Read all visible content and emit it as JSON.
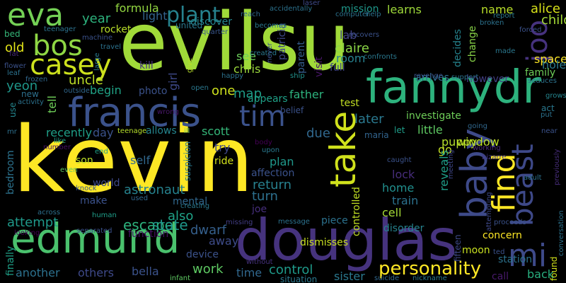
{
  "background": "#000000",
  "words": [
    {
      "text": "kevin",
      "color": "#fde725"
    },
    {
      "text": "evilsu",
      "color": "#a0da39"
    },
    {
      "text": "douglas",
      "color": "#46337e"
    },
    {
      "text": "fannydr",
      "color": "#2db27d"
    },
    {
      "text": "edmund",
      "color": "#4ac16d"
    },
    {
      "text": "francis",
      "color": "#3b528b"
    },
    {
      "text": "take",
      "color": "#d0e11c"
    },
    {
      "text": "beast",
      "color": "#3e4989"
    },
    {
      "text": "baby",
      "color": "#3e4a89"
    },
    {
      "text": "find",
      "color": "#fde725"
    },
    {
      "text": "mi",
      "color": "#3e4a89"
    },
    {
      "text": "eva",
      "color": "#74d055"
    },
    {
      "text": "bos",
      "color": "#8fd744"
    },
    {
      "text": "joo",
      "color": "#46327e"
    },
    {
      "text": "tim",
      "color": "#3b528b"
    },
    {
      "text": "casey",
      "color": "#cde11d"
    },
    {
      "text": "plant",
      "color": "#26828e"
    },
    {
      "text": "personality",
      "color": "#fde725"
    },
    {
      "text": "escape",
      "color": "#2db27d"
    },
    {
      "text": "state",
      "color": "#1f988b"
    },
    {
      "text": "astronaut",
      "color": "#26828e"
    },
    {
      "text": "attempt",
      "color": "#1f998a"
    },
    {
      "text": "return",
      "color": "#27808e"
    },
    {
      "text": "turn",
      "color": "#2d708e"
    },
    {
      "text": "control",
      "color": "#1f9a8a"
    },
    {
      "text": "work",
      "color": "#5ec962"
    },
    {
      "text": "time",
      "color": "#31688e"
    },
    {
      "text": "another",
      "color": "#2c718e"
    },
    {
      "text": "others",
      "color": "#3e4989"
    },
    {
      "text": "bella",
      "color": "#3b528b"
    },
    {
      "text": "sister",
      "color": "#2a788e"
    },
    {
      "text": "space",
      "color": "#fde725"
    },
    {
      "text": "alice",
      "color": "#d8e219"
    },
    {
      "text": "child",
      "color": "#a5db36"
    },
    {
      "text": "hole",
      "color": "#2a788e"
    },
    {
      "text": "family",
      "color": "#6ece58"
    },
    {
      "text": "father",
      "color": "#2db27d"
    },
    {
      "text": "later",
      "color": "#2a788e"
    },
    {
      "text": "little",
      "color": "#5ec962"
    },
    {
      "text": "puppy",
      "color": "#b5de2b"
    },
    {
      "text": "map",
      "color": "#1f9e89"
    },
    {
      "text": "one",
      "color": "#cde11d"
    },
    {
      "text": "chris",
      "color": "#9bd93c"
    },
    {
      "text": "see",
      "color": "#6ccd5a"
    },
    {
      "text": "room",
      "color": "#27808e"
    },
    {
      "text": "claire",
      "color": "#8bd646"
    },
    {
      "text": "lab",
      "color": "#414487"
    },
    {
      "text": "mission",
      "color": "#1f988b"
    },
    {
      "text": "learns",
      "color": "#9fda3a"
    },
    {
      "text": "name",
      "color": "#b8de29"
    },
    {
      "text": "formula",
      "color": "#93d741"
    },
    {
      "text": "year",
      "color": "#2db27d"
    },
    {
      "text": "light",
      "color": "#33638d"
    },
    {
      "text": "rocket",
      "color": "#b8de29"
    },
    {
      "text": "uncle",
      "color": "#bddf26"
    },
    {
      "text": "begin",
      "color": "#20a386"
    },
    {
      "text": "photo",
      "color": "#3b528b"
    },
    {
      "text": "kill",
      "color": "#46337e"
    },
    {
      "text": "yeon",
      "color": "#1f978b"
    },
    {
      "text": "old",
      "color": "#e2e418"
    },
    {
      "text": "day",
      "color": "#3b528b"
    },
    {
      "text": "allows",
      "color": "#25858e"
    },
    {
      "text": "recently",
      "color": "#1fa088"
    },
    {
      "text": "scott",
      "color": "#35b779"
    },
    {
      "text": "due",
      "color": "#31688e"
    },
    {
      "text": "try",
      "color": "#3f4788"
    },
    {
      "text": "plan",
      "color": "#1f988b"
    },
    {
      "text": "self",
      "color": "#31688e"
    },
    {
      "text": "investigate",
      "color": "#6ece58"
    },
    {
      "text": "go",
      "color": "#c2df23"
    },
    {
      "text": "window",
      "color": "#bddf26"
    },
    {
      "text": "test",
      "color": "#c2df23"
    },
    {
      "text": "lock",
      "color": "#472d7b"
    },
    {
      "text": "home",
      "color": "#218f8d"
    },
    {
      "text": "train",
      "color": "#2c728e"
    },
    {
      "text": "cell",
      "color": "#a5db36"
    },
    {
      "text": "reveals",
      "color": "#1f9e89"
    },
    {
      "text": "concern",
      "color": "#fde725"
    },
    {
      "text": "moon",
      "color": "#c8e020"
    },
    {
      "text": "back",
      "color": "#29af7f"
    },
    {
      "text": "dwarf",
      "color": "#35608d"
    },
    {
      "text": "away",
      "color": "#3e4c8a"
    },
    {
      "text": "device",
      "color": "#3b528b"
    },
    {
      "text": "also",
      "color": "#1fa287"
    },
    {
      "text": "joe",
      "color": "#472f7d"
    },
    {
      "text": "dismisses",
      "color": "#c8e020"
    },
    {
      "text": "disorder",
      "color": "#26828e"
    },
    {
      "text": "piece",
      "color": "#2c728e"
    },
    {
      "text": "function",
      "color": "#471063"
    },
    {
      "text": "bedroom",
      "color": "#2c728e"
    },
    {
      "text": "son",
      "color": "#bddf26"
    },
    {
      "text": "tell",
      "color": "#6ece58"
    },
    {
      "text": "world",
      "color": "#3e4989"
    },
    {
      "text": "make",
      "color": "#3b528b"
    },
    {
      "text": "mental",
      "color": "#31688e"
    },
    {
      "text": "girl",
      "color": "#3e4989"
    },
    {
      "text": "appears",
      "color": "#1fa188"
    },
    {
      "text": "patricia",
      "color": "#3e4989"
    },
    {
      "text": "parent",
      "color": "#365d8d"
    },
    {
      "text": "visit",
      "color": "#481769"
    },
    {
      "text": "full",
      "color": "#404688"
    },
    {
      "text": "decides",
      "color": "#25838e"
    },
    {
      "text": "change",
      "color": "#89d548"
    },
    {
      "text": "arrives",
      "color": "#2c728e"
    },
    {
      "text": "however",
      "color": "#433e85"
    },
    {
      "text": "controlled",
      "color": "#c2df23"
    },
    {
      "text": "finally",
      "color": "#1fa188"
    },
    {
      "text": "discover",
      "color": "#25858e"
    },
    {
      "text": "united",
      "color": "#2a788e"
    },
    {
      "text": "affection",
      "color": "#3b528b"
    },
    {
      "text": "ride",
      "color": "#d2e21b"
    },
    {
      "text": "suspicion",
      "color": "#2a788e"
    },
    {
      "text": "maria",
      "color": "#32648e"
    },
    {
      "text": "let",
      "color": "#1f9e89"
    },
    {
      "text": "belief",
      "color": "#3b528b"
    },
    {
      "text": "station",
      "color": "#2c728e"
    },
    {
      "text": "act",
      "color": "#2a788e"
    },
    {
      "text": "new",
      "color": "#2d708e"
    },
    {
      "text": "use",
      "color": "#24868e"
    },
    {
      "text": "bed",
      "color": "#35b779"
    },
    {
      "text": "fat",
      "color": "#472a7a"
    },
    {
      "text": "call",
      "color": "#481a6c"
    },
    {
      "text": "situation",
      "color": "#2a788e"
    },
    {
      "text": "fifteen",
      "color": "#3e4989"
    },
    {
      "text": "human",
      "color": "#1f9e89"
    },
    {
      "text": "across",
      "color": "#2d708e"
    },
    {
      "text": "looking",
      "color": "#440154"
    },
    {
      "text": "separated",
      "color": "#3b528b"
    },
    {
      "text": "creating",
      "color": "#2a788e"
    },
    {
      "text": "missing",
      "color": "#433e85"
    },
    {
      "text": "message",
      "color": "#2c728e"
    },
    {
      "text": "without",
      "color": "#46327e"
    },
    {
      "text": "suicide",
      "color": "#31688e"
    },
    {
      "text": "nickname",
      "color": "#2a788e"
    },
    {
      "text": "infant",
      "color": "#5ec962"
    },
    {
      "text": "ted",
      "color": "#3b528b"
    },
    {
      "text": "adult",
      "color": "#2c728e"
    },
    {
      "text": "even",
      "color": "#5ec962"
    },
    {
      "text": "knock",
      "color": "#39568c"
    },
    {
      "text": "used",
      "color": "#31688e"
    },
    {
      "text": "body",
      "color": "#440154"
    },
    {
      "text": "upon",
      "color": "#2a788e"
    },
    {
      "text": "caught",
      "color": "#3b528b"
    },
    {
      "text": "meeting",
      "color": "#3f4788"
    },
    {
      "text": "bizarre",
      "color": "#443983"
    },
    {
      "text": "working",
      "color": "#482878"
    },
    {
      "text": "going",
      "color": "#31688e"
    },
    {
      "text": "mr",
      "color": "#2d708e"
    },
    {
      "text": "number",
      "color": "#471063"
    },
    {
      "text": "like",
      "color": "#1fa188"
    },
    {
      "text": "end",
      "color": "#1fa188"
    },
    {
      "text": "teenage",
      "color": "#b5de2b"
    },
    {
      "text": "ill",
      "color": "#6ece58"
    },
    {
      "text": "wrong",
      "color": "#481769"
    },
    {
      "text": "seduces",
      "color": "#2c728e"
    },
    {
      "text": "grows",
      "color": "#25858e"
    },
    {
      "text": "put",
      "color": "#2c728e"
    },
    {
      "text": "near",
      "color": "#3b528b"
    },
    {
      "text": "previously",
      "color": "#472d7b"
    },
    {
      "text": "conversation",
      "color": "#2c728e"
    },
    {
      "text": "attempting",
      "color": "#3e4989"
    },
    {
      "text": "proceeds",
      "color": "#3b528b"
    },
    {
      "text": "found",
      "color": "#d2e21b"
    },
    {
      "text": "activity",
      "color": "#2c728e"
    },
    {
      "text": "frozen",
      "color": "#31688e"
    },
    {
      "text": "leaf",
      "color": "#2c728e"
    },
    {
      "text": "flower",
      "color": "#3b528b"
    },
    {
      "text": "outside",
      "color": "#31688e"
    },
    {
      "text": "large",
      "color": "#2a788e"
    },
    {
      "text": "travel",
      "color": "#2c728e"
    },
    {
      "text": "machine",
      "color": "#3b528b"
    },
    {
      "text": "teenager",
      "color": "#2c728e"
    },
    {
      "text": "open",
      "color": "#2a788e"
    },
    {
      "text": "quarter",
      "color": "#39568c"
    },
    {
      "text": "created",
      "color": "#2a788e"
    },
    {
      "text": "give",
      "color": "#b8de29"
    },
    {
      "text": "happy",
      "color": "#2c728e"
    },
    {
      "text": "ship",
      "color": "#21918c"
    },
    {
      "text": "never",
      "color": "#3b528b"
    },
    {
      "text": "becomes",
      "color": "#2a788e"
    },
    {
      "text": "reach",
      "color": "#31688e"
    },
    {
      "text": "accidentally",
      "color": "#2c728e"
    },
    {
      "text": "laser",
      "color": "#3e4989"
    },
    {
      "text": "computer",
      "color": "#2c728e"
    },
    {
      "text": "help",
      "color": "#2c728e"
    },
    {
      "text": "recovers",
      "color": "#3b528b"
    },
    {
      "text": "confronts",
      "color": "#2a788e"
    },
    {
      "text": "revenge",
      "color": "#3b528b"
    },
    {
      "text": "support",
      "color": "#2c728e"
    },
    {
      "text": "broken",
      "color": "#2c728e"
    },
    {
      "text": "report",
      "color": "#2a788e"
    },
    {
      "text": "forced",
      "color": "#3b528b"
    },
    {
      "text": "made",
      "color": "#2a788e"
    }
  ]
}
